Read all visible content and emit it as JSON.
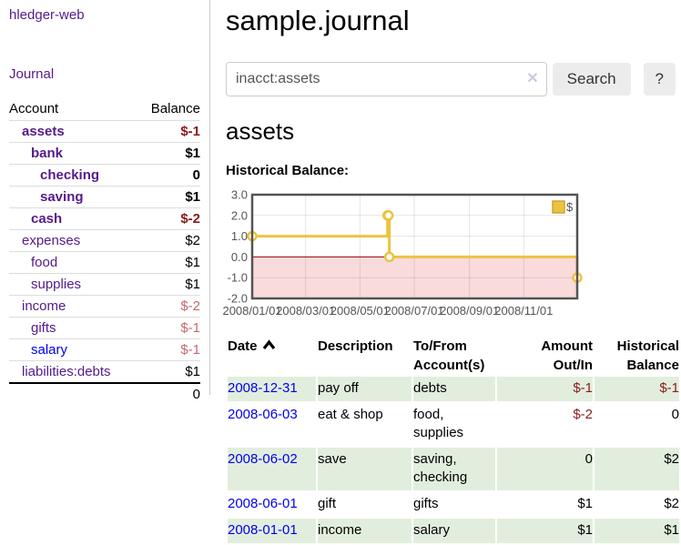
{
  "app": {
    "brand": "hledger-web",
    "nav_journal": "Journal"
  },
  "sidebar": {
    "header": {
      "account": "Account",
      "balance": "Balance"
    },
    "accounts": [
      {
        "name": "assets",
        "balance": "$-1",
        "level": 1,
        "bold": true,
        "balance_style": "negative"
      },
      {
        "name": "bank",
        "balance": "$1",
        "level": 2,
        "bold": true,
        "balance_style": "normal"
      },
      {
        "name": "checking",
        "balance": "0",
        "level": 3,
        "bold": true,
        "balance_style": "normal"
      },
      {
        "name": "saving",
        "balance": "$1",
        "level": 3,
        "bold": true,
        "balance_style": "normal"
      },
      {
        "name": "cash",
        "balance": "$-2",
        "level": 2,
        "bold": true,
        "balance_style": "negative"
      },
      {
        "name": "expenses",
        "balance": "$2",
        "level": 1,
        "bold": false,
        "balance_style": "normal"
      },
      {
        "name": "food",
        "balance": "$1",
        "level": 2,
        "bold": false,
        "balance_style": "normal"
      },
      {
        "name": "supplies",
        "balance": "$1",
        "level": 2,
        "bold": false,
        "balance_style": "normal"
      },
      {
        "name": "income",
        "balance": "$-2",
        "level": 1,
        "bold": false,
        "balance_style": "muted-negative"
      },
      {
        "name": "gifts",
        "balance": "$-1",
        "level": 2,
        "bold": false,
        "balance_style": "muted-negative"
      },
      {
        "name": "salary",
        "balance": "$-1",
        "level": 2,
        "bold": false,
        "balance_style": "muted-negative",
        "link_color": "blue"
      },
      {
        "name": "liabilities:debts",
        "balance": "$1",
        "level": 1,
        "bold": false,
        "balance_style": "normal"
      }
    ],
    "total": "0"
  },
  "header": {
    "title": "sample.journal"
  },
  "search": {
    "value": "inacct:assets",
    "clear_icon": "✕",
    "search_button": "Search",
    "help_button": "?"
  },
  "account_page": {
    "title": "assets",
    "chart_label": "Historical Balance:"
  },
  "chart_data": {
    "type": "line",
    "step": true,
    "title": "Historical Balance",
    "legend": {
      "label": "$",
      "position": "top-right"
    },
    "series": [
      {
        "name": "$",
        "color": "#EDC240",
        "points": [
          {
            "date": "2008-01-01",
            "value": 1
          },
          {
            "date": "2008-06-01",
            "value": 2
          },
          {
            "date": "2008-06-02",
            "value": 2
          },
          {
            "date": "2008-06-03",
            "value": 0
          },
          {
            "date": "2008-12-31",
            "value": -1
          }
        ]
      }
    ],
    "x_range": [
      "2008-01-01",
      "2008-12-31"
    ],
    "x_ticks": [
      {
        "date": "2008-01-01",
        "label": "2008/01/01"
      },
      {
        "date": "2008-03-01",
        "label": "2008/03/01"
      },
      {
        "date": "2008-05-01",
        "label": "2008/05/01"
      },
      {
        "date": "2008-07-01",
        "label": "2008/07/01"
      },
      {
        "date": "2008-09-01",
        "label": "2008/09/01"
      },
      {
        "date": "2008-11-01",
        "label": "2008/11/01"
      }
    ],
    "y_ticks": [
      {
        "value": 3,
        "label": "3.0"
      },
      {
        "value": 2,
        "label": "2.0"
      },
      {
        "value": 1,
        "label": "1.0"
      },
      {
        "value": 0,
        "label": "0.0"
      },
      {
        "value": -1,
        "label": "-1.0"
      },
      {
        "value": -2,
        "label": "-2.0"
      }
    ],
    "ylim": [
      -2,
      3
    ],
    "grid": true,
    "colors": {
      "border": "#545454",
      "gridline": "#dddddd",
      "zero_line": "#990000",
      "negative_region": "#fadbdc",
      "tick_text": "#545454",
      "marker_fill": "#ffffff"
    }
  },
  "register": {
    "columns": [
      {
        "line1": "Date",
        "line2": "",
        "align": "left",
        "sort_icon": "chevron-up"
      },
      {
        "line1": "Description",
        "line2": "",
        "align": "left"
      },
      {
        "line1": "To/From",
        "line2": "Account(s)",
        "align": "left"
      },
      {
        "line1": "Amount",
        "line2": "Out/In",
        "align": "right"
      },
      {
        "line1": "Historical",
        "line2": "Balance",
        "align": "right"
      }
    ],
    "rows": [
      {
        "date": "2008-12-31",
        "description": "pay off",
        "accounts": "debts",
        "amount": "$-1",
        "amount_style": "negative",
        "balance": "$-1",
        "balance_style": "negative"
      },
      {
        "date": "2008-06-03",
        "description": "eat & shop",
        "accounts": "food, supplies",
        "amount": "$-2",
        "amount_style": "negative",
        "balance": "0",
        "balance_style": "normal"
      },
      {
        "date": "2008-06-02",
        "description": "save",
        "accounts": "saving, checking",
        "amount": "0",
        "amount_style": "normal",
        "balance": "$2",
        "balance_style": "normal"
      },
      {
        "date": "2008-06-01",
        "description": "gift",
        "accounts": "gifts",
        "amount": "$1",
        "amount_style": "normal",
        "balance": "$2",
        "balance_style": "normal"
      },
      {
        "date": "2008-01-01",
        "description": "income",
        "accounts": "salary",
        "amount": "$1",
        "amount_style": "normal",
        "balance": "$1",
        "balance_style": "normal"
      }
    ]
  }
}
